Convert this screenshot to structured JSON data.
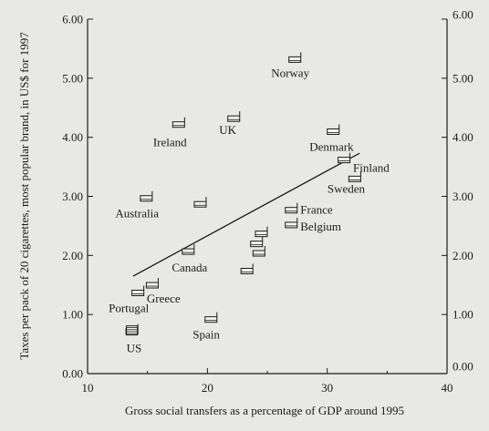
{
  "chart_data": {
    "type": "scatter",
    "xlabel": "Gross social transfers as a percentage of GDP around 1995",
    "ylabel": "Taxes per pack of 20 cigarettes, most popular brand, in US$ for 1997",
    "xlim": [
      10,
      40
    ],
    "ylim": [
      0,
      6
    ],
    "x_ticks": [
      "10",
      "20",
      "30",
      "40"
    ],
    "y_ticks_left": [
      "0.00",
      "1.00",
      "2.00",
      "3.00",
      "4.00",
      "5.00",
      "6.00"
    ],
    "y_ticks_right": [
      "0.00",
      "1.00",
      "2.00",
      "3.00",
      "4.00",
      "5.00",
      "6.00"
    ],
    "grid": false,
    "points": [
      {
        "label": "US",
        "x": 13.7,
        "y": 0.7
      },
      {
        "label": "Portugal",
        "x": 14.2,
        "y": 1.35
      },
      {
        "label": "Greece",
        "x": 15.4,
        "y": 1.48
      },
      {
        "label": "Spain",
        "x": 20.3,
        "y": 0.9
      },
      {
        "label": "Canada",
        "x": 18.4,
        "y": 2.05
      },
      {
        "label": "Australia",
        "x": 14.9,
        "y": 2.95
      },
      {
        "label": "Ireland",
        "x": 17.6,
        "y": 4.2
      },
      {
        "label": "UK",
        "x": 22.2,
        "y": 4.3
      },
      {
        "label": "Norway",
        "x": 27.3,
        "y": 5.3
      },
      {
        "label": "Denmark",
        "x": 30.5,
        "y": 4.08
      },
      {
        "label": "Finland",
        "x": 31.4,
        "y": 3.6
      },
      {
        "label": "Sweden",
        "x": 32.3,
        "y": 3.28
      },
      {
        "label": "France",
        "x": 27.0,
        "y": 2.75
      },
      {
        "label": "Belgium",
        "x": 27.0,
        "y": 2.5
      },
      {
        "label": "",
        "x": 19.4,
        "y": 2.85
      },
      {
        "label": "",
        "x": 24.5,
        "y": 2.35
      },
      {
        "label": "",
        "x": 24.1,
        "y": 2.18
      },
      {
        "label": "",
        "x": 24.3,
        "y": 2.02
      },
      {
        "label": "",
        "x": 23.3,
        "y": 1.72
      }
    ],
    "trend_line": {
      "x": [
        13.8,
        32.7
      ],
      "y": [
        1.65,
        3.73
      ]
    }
  }
}
